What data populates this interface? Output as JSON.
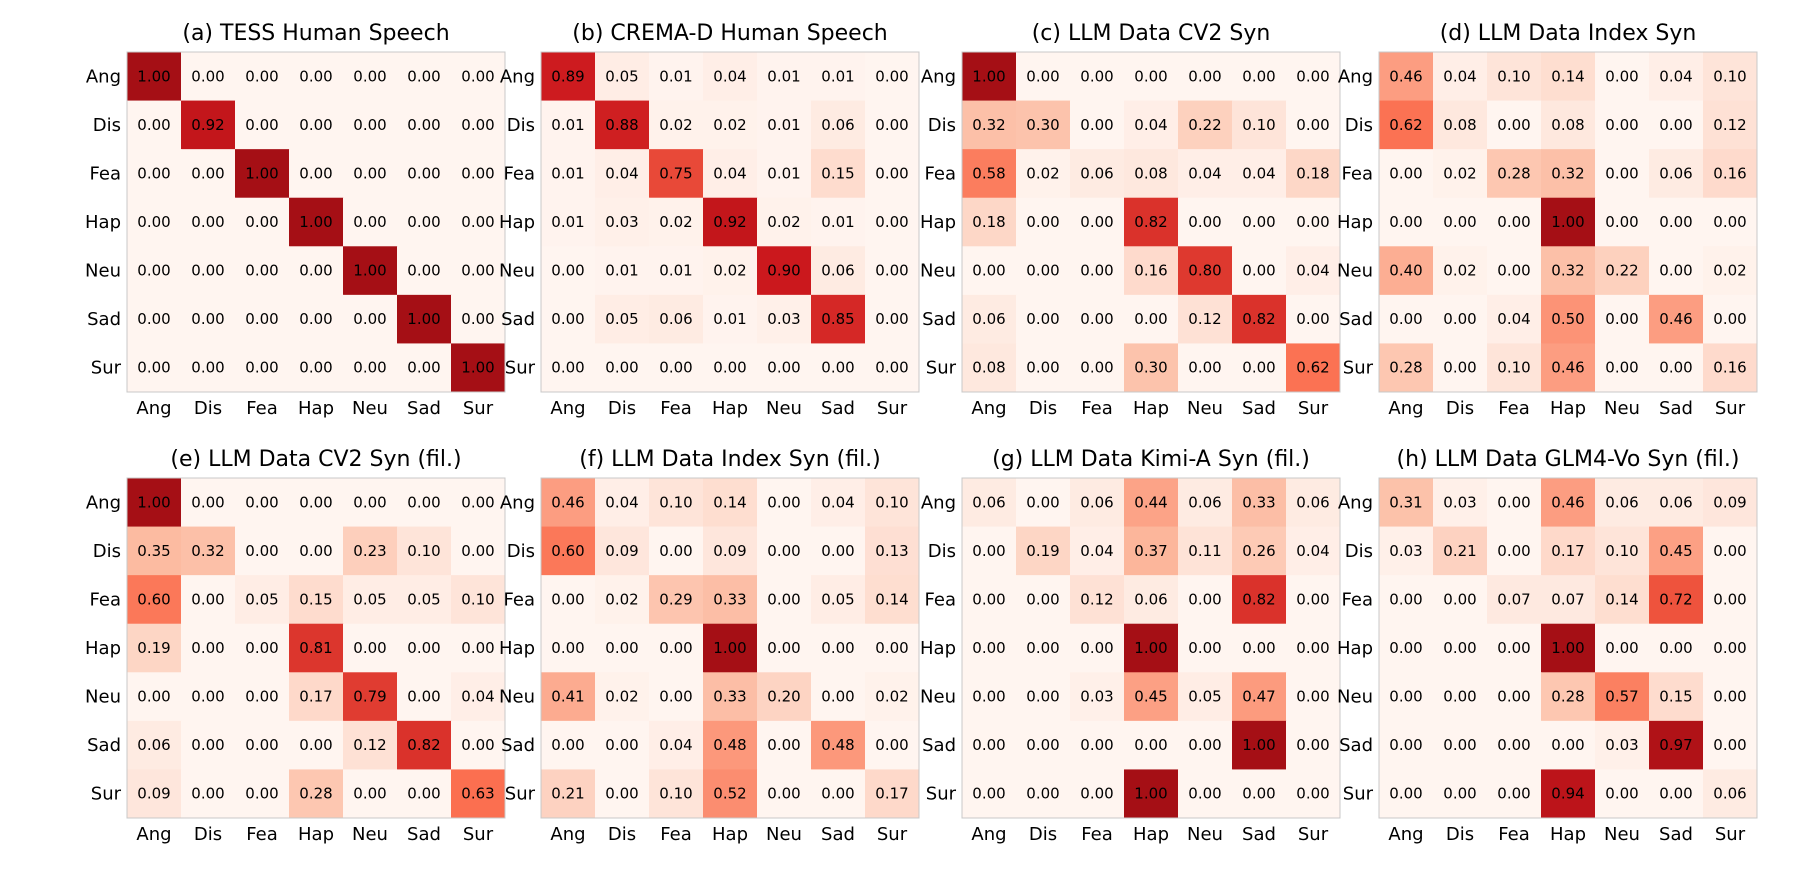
{
  "figure": {
    "labels": [
      "Ang",
      "Dis",
      "Fea",
      "Hap",
      "Neu",
      "Sad",
      "Sur"
    ],
    "colormap": [
      "#fff5f0",
      "#fcbba1",
      "#fb6a4a",
      "#cb181d",
      "#a50f15"
    ]
  },
  "chart_data": [
    {
      "type": "heatmap",
      "title": "(a) TESS Human Speech",
      "values": [
        [
          1.0,
          0.0,
          0.0,
          0.0,
          0.0,
          0.0,
          0.0
        ],
        [
          0.0,
          0.92,
          0.0,
          0.0,
          0.0,
          0.0,
          0.0
        ],
        [
          0.0,
          0.0,
          1.0,
          0.0,
          0.0,
          0.0,
          0.0
        ],
        [
          0.0,
          0.0,
          0.0,
          1.0,
          0.0,
          0.0,
          0.0
        ],
        [
          0.0,
          0.0,
          0.0,
          0.0,
          1.0,
          0.0,
          0.0
        ],
        [
          0.0,
          0.0,
          0.0,
          0.0,
          0.0,
          1.0,
          0.0
        ],
        [
          0.0,
          0.0,
          0.0,
          0.0,
          0.0,
          0.0,
          1.0
        ]
      ]
    },
    {
      "type": "heatmap",
      "title": "(b) CREMA-D Human Speech",
      "values": [
        [
          0.89,
          0.05,
          0.01,
          0.04,
          0.01,
          0.01,
          0.0
        ],
        [
          0.01,
          0.88,
          0.02,
          0.02,
          0.01,
          0.06,
          0.0
        ],
        [
          0.01,
          0.04,
          0.75,
          0.04,
          0.01,
          0.15,
          0.0
        ],
        [
          0.01,
          0.03,
          0.02,
          0.92,
          0.02,
          0.01,
          0.0
        ],
        [
          0.0,
          0.01,
          0.01,
          0.02,
          0.9,
          0.06,
          0.0
        ],
        [
          0.0,
          0.05,
          0.06,
          0.01,
          0.03,
          0.85,
          0.0
        ],
        [
          0.0,
          0.0,
          0.0,
          0.0,
          0.0,
          0.0,
          0.0
        ]
      ]
    },
    {
      "type": "heatmap",
      "title": "(c) LLM Data CV2 Syn",
      "values": [
        [
          1.0,
          0.0,
          0.0,
          0.0,
          0.0,
          0.0,
          0.0
        ],
        [
          0.32,
          0.3,
          0.0,
          0.04,
          0.22,
          0.1,
          0.0
        ],
        [
          0.58,
          0.02,
          0.06,
          0.08,
          0.04,
          0.04,
          0.18
        ],
        [
          0.18,
          0.0,
          0.0,
          0.82,
          0.0,
          0.0,
          0.0
        ],
        [
          0.0,
          0.0,
          0.0,
          0.16,
          0.8,
          0.0,
          0.04
        ],
        [
          0.06,
          0.0,
          0.0,
          0.0,
          0.12,
          0.82,
          0.0
        ],
        [
          0.08,
          0.0,
          0.0,
          0.3,
          0.0,
          0.0,
          0.62
        ]
      ]
    },
    {
      "type": "heatmap",
      "title": "(d) LLM Data Index Syn",
      "values": [
        [
          0.46,
          0.04,
          0.1,
          0.14,
          0.0,
          0.04,
          0.1
        ],
        [
          0.62,
          0.08,
          0.0,
          0.08,
          0.0,
          0.0,
          0.12
        ],
        [
          0.0,
          0.02,
          0.28,
          0.32,
          0.0,
          0.06,
          0.16
        ],
        [
          0.0,
          0.0,
          0.0,
          1.0,
          0.0,
          0.0,
          0.0
        ],
        [
          0.4,
          0.02,
          0.0,
          0.32,
          0.22,
          0.0,
          0.02
        ],
        [
          0.0,
          0.0,
          0.04,
          0.5,
          0.0,
          0.46,
          0.0
        ],
        [
          0.28,
          0.0,
          0.1,
          0.46,
          0.0,
          0.0,
          0.16
        ]
      ]
    },
    {
      "type": "heatmap",
      "title": "(e) LLM Data CV2 Syn (fil.)",
      "values": [
        [
          1.0,
          0.0,
          0.0,
          0.0,
          0.0,
          0.0,
          0.0
        ],
        [
          0.35,
          0.32,
          0.0,
          0.0,
          0.23,
          0.1,
          0.0
        ],
        [
          0.6,
          0.0,
          0.05,
          0.15,
          0.05,
          0.05,
          0.1
        ],
        [
          0.19,
          0.0,
          0.0,
          0.81,
          0.0,
          0.0,
          0.0
        ],
        [
          0.0,
          0.0,
          0.0,
          0.17,
          0.79,
          0.0,
          0.04
        ],
        [
          0.06,
          0.0,
          0.0,
          0.0,
          0.12,
          0.82,
          0.0
        ],
        [
          0.09,
          0.0,
          0.0,
          0.28,
          0.0,
          0.0,
          0.63
        ]
      ]
    },
    {
      "type": "heatmap",
      "title": "(f) LLM Data Index Syn (fil.)",
      "values": [
        [
          0.46,
          0.04,
          0.1,
          0.14,
          0.0,
          0.04,
          0.1
        ],
        [
          0.6,
          0.09,
          0.0,
          0.09,
          0.0,
          0.0,
          0.13
        ],
        [
          0.0,
          0.02,
          0.29,
          0.33,
          0.0,
          0.05,
          0.14
        ],
        [
          0.0,
          0.0,
          0.0,
          1.0,
          0.0,
          0.0,
          0.0
        ],
        [
          0.41,
          0.02,
          0.0,
          0.33,
          0.2,
          0.0,
          0.02
        ],
        [
          0.0,
          0.0,
          0.04,
          0.48,
          0.0,
          0.48,
          0.0
        ],
        [
          0.21,
          0.0,
          0.1,
          0.52,
          0.0,
          0.0,
          0.17
        ]
      ]
    },
    {
      "type": "heatmap",
      "title": "(g) LLM Data Kimi-A Syn (fil.)",
      "values": [
        [
          0.06,
          0.0,
          0.06,
          0.44,
          0.06,
          0.33,
          0.06
        ],
        [
          0.0,
          0.19,
          0.04,
          0.37,
          0.11,
          0.26,
          0.04
        ],
        [
          0.0,
          0.0,
          0.12,
          0.06,
          0.0,
          0.82,
          0.0
        ],
        [
          0.0,
          0.0,
          0.0,
          1.0,
          0.0,
          0.0,
          0.0
        ],
        [
          0.0,
          0.0,
          0.03,
          0.45,
          0.05,
          0.47,
          0.0
        ],
        [
          0.0,
          0.0,
          0.0,
          0.0,
          0.0,
          1.0,
          0.0
        ],
        [
          0.0,
          0.0,
          0.0,
          1.0,
          0.0,
          0.0,
          0.0
        ]
      ]
    },
    {
      "type": "heatmap",
      "title": "(h) LLM Data GLM4-Vo Syn (fil.)",
      "values": [
        [
          0.31,
          0.03,
          0.0,
          0.46,
          0.06,
          0.06,
          0.09
        ],
        [
          0.03,
          0.21,
          0.0,
          0.17,
          0.1,
          0.45,
          0.0
        ],
        [
          0.0,
          0.0,
          0.07,
          0.07,
          0.14,
          0.72,
          0.0
        ],
        [
          0.0,
          0.0,
          0.0,
          1.0,
          0.0,
          0.0,
          0.0
        ],
        [
          0.0,
          0.0,
          0.0,
          0.28,
          0.57,
          0.15,
          0.0
        ],
        [
          0.0,
          0.0,
          0.0,
          0.0,
          0.03,
          0.97,
          0.0
        ],
        [
          0.0,
          0.0,
          0.0,
          0.94,
          0.0,
          0.0,
          0.06
        ]
      ]
    }
  ]
}
